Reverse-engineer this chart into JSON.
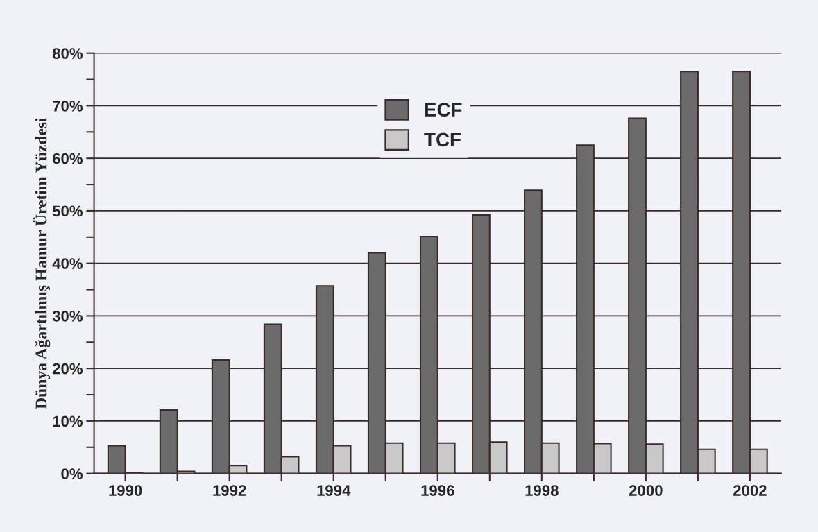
{
  "chart_data": {
    "type": "bar",
    "ylabel": "Dünya Ağartılmış Hamur Üretim Yüzdesi",
    "categories": [
      "1990",
      null,
      "1992",
      null,
      "1994",
      null,
      "1996",
      null,
      "1998",
      null,
      "2000",
      null,
      "2002"
    ],
    "series": [
      {
        "name": "ECF",
        "color": "#6b6b6b",
        "values": [
          5.3,
          12.1,
          21.6,
          28.4,
          35.7,
          42.0,
          45.1,
          49.2,
          53.9,
          62.5,
          67.6,
          76.5,
          76.5
        ]
      },
      {
        "name": "TCF",
        "color": "#c8c8c8",
        "values": [
          0.1,
          0.4,
          1.5,
          3.2,
          5.3,
          5.8,
          5.8,
          6.0,
          5.8,
          5.7,
          5.6,
          4.6,
          4.6
        ]
      }
    ],
    "ylim": [
      0,
      80
    ],
    "yticks": [
      {
        "value": 0,
        "label": "0%"
      },
      {
        "value": 5,
        "label": null
      },
      {
        "value": 10,
        "label": "10%"
      },
      {
        "value": 15,
        "label": null
      },
      {
        "value": 20,
        "label": "20%"
      },
      {
        "value": 25,
        "label": null
      },
      {
        "value": 30,
        "label": "30%"
      },
      {
        "value": 35,
        "label": null
      },
      {
        "value": 40,
        "label": "40%"
      },
      {
        "value": 45,
        "label": null
      },
      {
        "value": 50,
        "label": "50%"
      },
      {
        "value": 55,
        "label": null
      },
      {
        "value": 60,
        "label": "60%"
      },
      {
        "value": 65,
        "label": null
      },
      {
        "value": 70,
        "label": "70%"
      },
      {
        "value": 75,
        "label": null
      },
      {
        "value": 80,
        "label": "80%"
      }
    ],
    "grid": "y",
    "legend": "top"
  }
}
